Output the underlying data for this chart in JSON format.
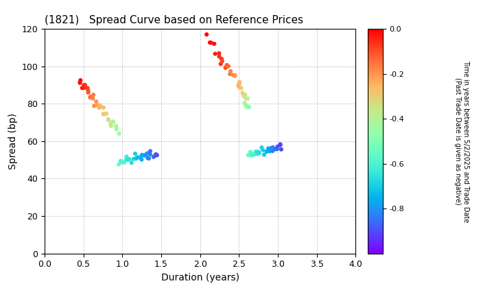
{
  "title": "(1821)   Spread Curve based on Reference Prices",
  "xlabel": "Duration (years)",
  "ylabel": "Spread (bp)",
  "xlim": [
    0.0,
    4.0
  ],
  "ylim": [
    0,
    120
  ],
  "colorbar_label": "Time in years between 5/2/2025 and Trade Date\n(Past Trade Date is given as negative)",
  "colorbar_vmin": -1.0,
  "colorbar_vmax": 0.0,
  "colorbar_ticks": [
    0.0,
    -0.2,
    -0.4,
    -0.6,
    -0.8
  ],
  "background_color": "#ffffff",
  "grid_color": "#b0b0b0",
  "marker_size": 20
}
